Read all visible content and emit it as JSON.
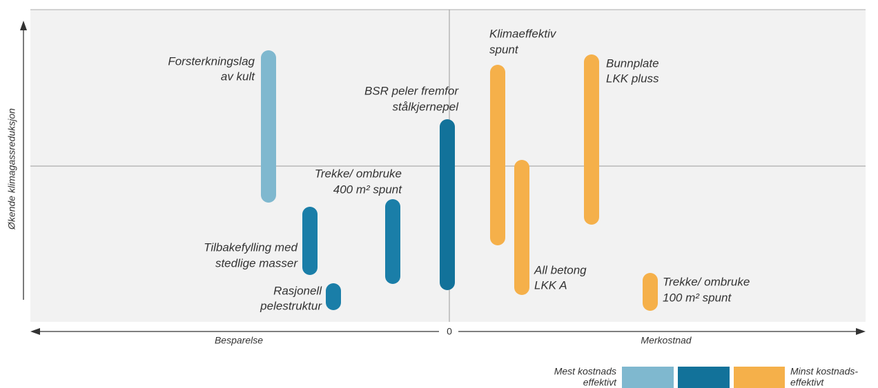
{
  "y_axis_label": "Økende klimagassreduksjon",
  "x_axis": {
    "left": "Besparelse",
    "zero": "0",
    "right": "Merkostnad"
  },
  "items": [
    {
      "label": [
        "Forsterkningslag",
        "av kult"
      ]
    },
    {
      "label": [
        "Tilbakefylling med",
        "stedlige masser"
      ]
    },
    {
      "label": [
        "Rasjonell",
        "pelestruktur"
      ]
    },
    {
      "label": [
        "Trekke/ ombruke",
        "400 m² spunt"
      ]
    },
    {
      "label": [
        "BSR peler fremfor",
        "stålkjernepel"
      ]
    },
    {
      "label": [
        "Klimaeffektiv",
        "spunt"
      ]
    },
    {
      "label": [
        "All betong",
        "LKK A"
      ]
    },
    {
      "label": [
        "Bunnplate",
        "LKK pluss"
      ]
    },
    {
      "label": [
        "Trekke/ ombruke",
        "100 m² spunt"
      ]
    }
  ],
  "legend": {
    "left": [
      "Mest kostnads",
      "effektivt"
    ],
    "right": [
      "Minst kostnads-",
      "effektivt"
    ]
  }
}
